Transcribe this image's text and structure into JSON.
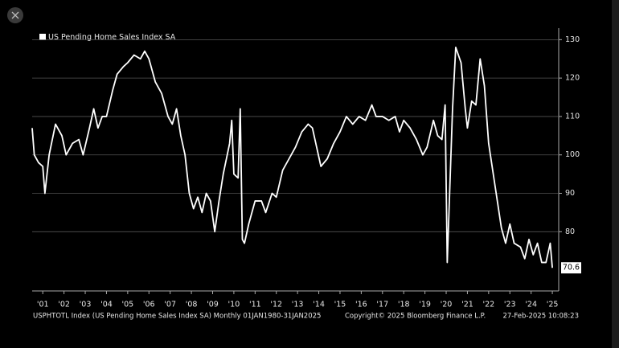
{
  "chart_data": {
    "type": "line",
    "legend": "US Pending Home Sales Index SA",
    "footer_left": "USPHTOTL Index (US Pending Home Sales Index SA)  Monthly 01JAN1980-31JAN2025",
    "footer_center": "Copyright© 2025 Bloomberg Finance L.P.",
    "footer_right": "27-Feb-2025 10:08:23",
    "x": [
      2000.5,
      2000.6,
      2000.8,
      2001.0,
      2001.1,
      2001.3,
      2001.6,
      2001.9,
      2002.1,
      2002.4,
      2002.7,
      2002.9,
      2003.2,
      2003.4,
      2003.6,
      2003.8,
      2004.0,
      2004.3,
      2004.5,
      2004.8,
      2005.0,
      2005.3,
      2005.6,
      2005.8,
      2006.0,
      2006.3,
      2006.6,
      2006.9,
      2007.1,
      2007.3,
      2007.5,
      2007.7,
      2007.9,
      2008.1,
      2008.3,
      2008.5,
      2008.7,
      2008.9,
      2009.1,
      2009.3,
      2009.5,
      2009.8,
      2009.9,
      2010.0,
      2010.2,
      2010.3,
      2010.4,
      2010.5,
      2010.7,
      2011.0,
      2011.3,
      2011.5,
      2011.8,
      2012.0,
      2012.3,
      2012.6,
      2012.9,
      2013.2,
      2013.5,
      2013.7,
      2013.9,
      2014.1,
      2014.4,
      2014.7,
      2015.0,
      2015.3,
      2015.6,
      2015.9,
      2016.2,
      2016.5,
      2016.7,
      2017.0,
      2017.3,
      2017.6,
      2017.8,
      2018.0,
      2018.3,
      2018.6,
      2018.9,
      2019.1,
      2019.4,
      2019.6,
      2019.8,
      2019.95,
      2020.05,
      2020.3,
      2020.45,
      2020.7,
      2020.9,
      2021.0,
      2021.2,
      2021.4,
      2021.6,
      2021.8,
      2022.0,
      2022.3,
      2022.6,
      2022.8,
      2023.0,
      2023.2,
      2023.5,
      2023.7,
      2023.9,
      2024.1,
      2024.3,
      2024.5,
      2024.7,
      2024.9,
      2025.0
    ],
    "series": [
      {
        "name": "US Pending Home Sales Index SA",
        "color": "#ffffff",
        "values": [
          107,
          100,
          98,
          97,
          90,
          100,
          108,
          105,
          100,
          103,
          104,
          100,
          107,
          112,
          107,
          110,
          110,
          117,
          121,
          123,
          124,
          126,
          125,
          127,
          125,
          119,
          116,
          110,
          108,
          112,
          105,
          100,
          90,
          86,
          89,
          85,
          90,
          88,
          80,
          88,
          95,
          103,
          109,
          95,
          94,
          112,
          78,
          77,
          82,
          88,
          88,
          85,
          90,
          89,
          96,
          99,
          102,
          106,
          108,
          107,
          102,
          97,
          99,
          103,
          106,
          110,
          108,
          110,
          109,
          113,
          110,
          110,
          109,
          110,
          106,
          109,
          107,
          104,
          100,
          102,
          109,
          105,
          104,
          113,
          72,
          112,
          128,
          124,
          112,
          107,
          114,
          113,
          125,
          118,
          103,
          92,
          81,
          77,
          82,
          77,
          76,
          73,
          78,
          74,
          77,
          72,
          72,
          77,
          70.6
        ]
      }
    ],
    "last_value": 70.6,
    "xlim": [
      2000.5,
      2025.3
    ],
    "xticks": [
      {
        "value": 2001,
        "label": "'01"
      },
      {
        "value": 2002,
        "label": "'02"
      },
      {
        "value": 2003,
        "label": "'03"
      },
      {
        "value": 2004,
        "label": "'04"
      },
      {
        "value": 2005,
        "label": "'05"
      },
      {
        "value": 2006,
        "label": "'06"
      },
      {
        "value": 2007,
        "label": "'07"
      },
      {
        "value": 2008,
        "label": "'08"
      },
      {
        "value": 2009,
        "label": "'09"
      },
      {
        "value": 2010,
        "label": "'10"
      },
      {
        "value": 2011,
        "label": "'11"
      },
      {
        "value": 2012,
        "label": "'12"
      },
      {
        "value": 2013,
        "label": "'13"
      },
      {
        "value": 2014,
        "label": "'14"
      },
      {
        "value": 2015,
        "label": "'15"
      },
      {
        "value": 2016,
        "label": "'16"
      },
      {
        "value": 2017,
        "label": "'17"
      },
      {
        "value": 2018,
        "label": "'18"
      },
      {
        "value": 2019,
        "label": "'19"
      },
      {
        "value": 2020,
        "label": "'20"
      },
      {
        "value": 2021,
        "label": "'21"
      },
      {
        "value": 2022,
        "label": "'22"
      },
      {
        "value": 2023,
        "label": "'23"
      },
      {
        "value": 2024,
        "label": "'24"
      },
      {
        "value": 2025,
        "label": "'25"
      }
    ],
    "ylim": [
      65,
      133
    ],
    "yticks": [
      80,
      90,
      100,
      110,
      120,
      130
    ],
    "grid": true
  }
}
